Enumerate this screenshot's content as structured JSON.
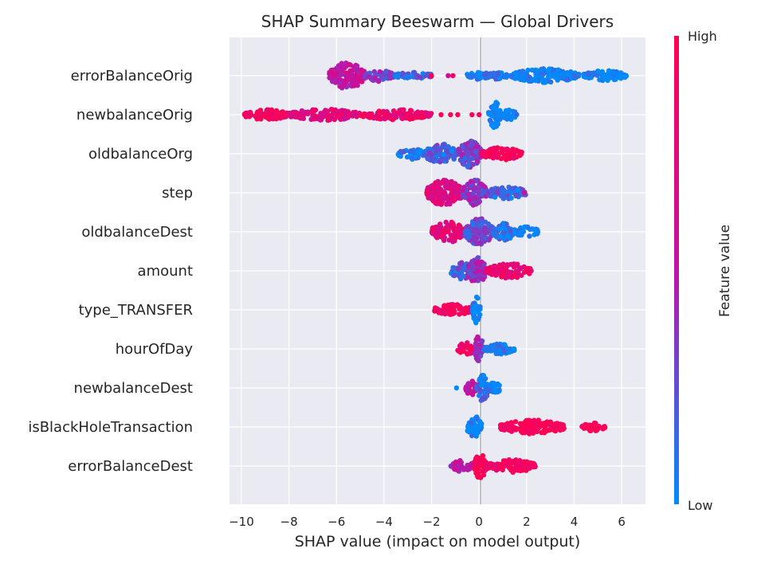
{
  "chart_data": {
    "type": "scatter",
    "subtype": "shap-beeswarm",
    "title": "SHAP Summary Beeswarm — Global Drivers",
    "xlabel": "SHAP value (impact on model output)",
    "xlim": [
      -10.5,
      7.0
    ],
    "xticks": [
      -10,
      -8,
      -6,
      -4,
      -2,
      0,
      2,
      4,
      6
    ],
    "xtick_labels": [
      "−10",
      "−8",
      "−6",
      "−4",
      "−2",
      "0",
      "2",
      "4",
      "6"
    ],
    "grid": true,
    "colorbar": {
      "label": "Feature value",
      "high_label": "High",
      "low_label": "Low",
      "low_color": "#008bfb",
      "mid_color": "#c013a8",
      "high_color": "#ff0052"
    },
    "features": [
      {
        "name": "errorBalanceOrig",
        "clusters": [
          {
            "x": [
              -6.3,
              -4.8
            ],
            "density": 1.0,
            "color": 0.55
          },
          {
            "x": [
              -4.8,
              -3.6
            ],
            "density": 0.35,
            "color": 0.3
          },
          {
            "x": [
              -3.6,
              -1.9
            ],
            "density": 0.15,
            "color": 0.2
          },
          {
            "x": [
              -0.5,
              1.2
            ],
            "density": 0.25,
            "color": 0.05
          },
          {
            "x": [
              1.3,
              4.2
            ],
            "density": 0.45,
            "color": 0.0
          },
          {
            "x": [
              4.4,
              6.2
            ],
            "density": 0.3,
            "color": 0.0
          }
        ],
        "points": [
          [
            -2.0,
            1.0
          ],
          [
            -1.3,
            0.6
          ],
          [
            -1.1,
            0.9
          ],
          [
            -0.3,
            0.1
          ]
        ]
      },
      {
        "name": "newbalanceOrig",
        "clusters": [
          {
            "x": [
              -9.9,
              -8.0
            ],
            "density": 0.3,
            "color": 0.95
          },
          {
            "x": [
              -8.0,
              -5.0
            ],
            "density": 0.35,
            "color": 0.75
          },
          {
            "x": [
              -5.0,
              -2.0
            ],
            "density": 0.3,
            "color": 0.85
          },
          {
            "x": [
              0.4,
              0.9
            ],
            "density": 1.0,
            "color": 0.0
          },
          {
            "x": [
              0.9,
              1.6
            ],
            "density": 0.3,
            "color": 0.0
          }
        ],
        "points": [
          [
            -1.6,
            1.0
          ],
          [
            -1.2,
            1.0
          ],
          [
            -0.9,
            1.0
          ],
          [
            -0.3,
            1.0
          ],
          [
            0.0,
            1.0
          ]
        ]
      },
      {
        "name": "oldbalanceOrg",
        "clusters": [
          {
            "x": [
              -3.4,
              -2.3
            ],
            "density": 0.35,
            "color": 0.05
          },
          {
            "x": [
              -2.3,
              -0.9
            ],
            "density": 0.7,
            "color": 0.15
          },
          {
            "x": [
              -0.9,
              0.1
            ],
            "density": 1.0,
            "color": 0.3
          },
          {
            "x": [
              0.1,
              1.8
            ],
            "density": 0.4,
            "color": 0.95
          }
        ],
        "points": []
      },
      {
        "name": "step",
        "clusters": [
          {
            "x": [
              -2.2,
              -0.7
            ],
            "density": 1.0,
            "color": 0.75
          },
          {
            "x": [
              -0.7,
              0.3
            ],
            "density": 1.0,
            "color": 0.35
          },
          {
            "x": [
              0.3,
              2.0
            ],
            "density": 0.4,
            "color": 0.15
          }
        ],
        "points": [
          [
            1.9,
            0.6
          ]
        ]
      },
      {
        "name": "oldbalanceDest",
        "clusters": [
          {
            "x": [
              -2.0,
              -0.6
            ],
            "density": 0.75,
            "color": 0.8
          },
          {
            "x": [
              -0.6,
              0.6
            ],
            "density": 1.0,
            "color": 0.25
          },
          {
            "x": [
              0.6,
              1.5
            ],
            "density": 0.6,
            "color": 0.1
          },
          {
            "x": [
              1.5,
              2.5
            ],
            "density": 0.3,
            "color": 0.0
          }
        ],
        "points": []
      },
      {
        "name": "amount",
        "clusters": [
          {
            "x": [
              -1.2,
              -0.2
            ],
            "density": 0.6,
            "color": 0.2
          },
          {
            "x": [
              -0.5,
              0.3
            ],
            "density": 1.0,
            "color": 0.4
          },
          {
            "x": [
              0.3,
              2.2
            ],
            "density": 0.5,
            "color": 0.85
          }
        ],
        "points": []
      },
      {
        "name": "type_TRANSFER",
        "clusters": [
          {
            "x": [
              -1.9,
              -0.3
            ],
            "density": 0.35,
            "color": 0.9
          },
          {
            "x": [
              -0.3,
              0.05
            ],
            "density": 1.0,
            "color": 0.05
          }
        ],
        "points": []
      },
      {
        "name": "hourOfDay",
        "clusters": [
          {
            "x": [
              -0.9,
              -0.2
            ],
            "density": 0.4,
            "color": 0.9
          },
          {
            "x": [
              -0.2,
              0.2
            ],
            "density": 1.0,
            "color": 0.4
          },
          {
            "x": [
              0.2,
              1.5
            ],
            "density": 0.3,
            "color": 0.0
          }
        ],
        "points": []
      },
      {
        "name": "newbalanceDest",
        "clusters": [
          {
            "x": [
              -0.6,
              -0.1
            ],
            "density": 0.5,
            "color": 0.55
          },
          {
            "x": [
              -0.1,
              0.4
            ],
            "density": 1.0,
            "color": 0.1
          },
          {
            "x": [
              0.4,
              0.9
            ],
            "density": 0.35,
            "color": 0.0
          }
        ],
        "points": [
          [
            -0.95,
            0.0
          ]
        ]
      },
      {
        "name": "isBlackHoleTransaction",
        "clusters": [
          {
            "x": [
              -0.5,
              0.1
            ],
            "density": 0.8,
            "color": 0.0
          },
          {
            "x": [
              0.9,
              3.6
            ],
            "density": 0.45,
            "color": 1.0
          },
          {
            "x": [
              4.3,
              5.3
            ],
            "density": 0.2,
            "color": 1.0
          }
        ],
        "points": []
      },
      {
        "name": "errorBalanceDest",
        "clusters": [
          {
            "x": [
              -1.2,
              -0.2
            ],
            "density": 0.35,
            "color": 0.5
          },
          {
            "x": [
              -0.2,
              0.3
            ],
            "density": 1.0,
            "color": 1.0
          },
          {
            "x": [
              0.3,
              2.4
            ],
            "density": 0.4,
            "color": 0.95
          }
        ],
        "points": []
      }
    ]
  }
}
